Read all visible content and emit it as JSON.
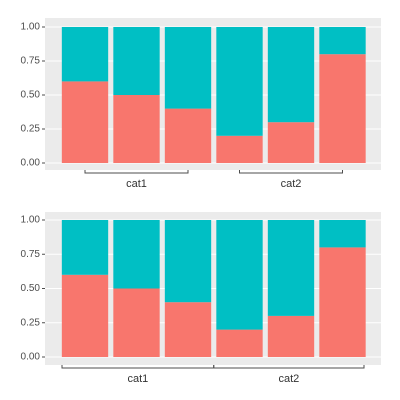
{
  "chart_data": [
    {
      "type": "bar",
      "stacked": true,
      "categories": [
        null,
        null,
        null,
        null,
        null,
        null
      ],
      "group_labels": [
        "cat1",
        "cat2"
      ],
      "bracket": "centers",
      "series": [
        {
          "color": "#F8766D",
          "values": [
            0.6,
            0.5,
            0.4,
            0.2,
            0.3,
            0.8
          ]
        },
        {
          "color": "#00BFC4",
          "values": [
            0.4,
            0.5,
            0.6,
            0.8,
            0.7,
            0.2
          ]
        }
      ],
      "ylim": [
        0,
        1
      ],
      "yticks": [
        {
          "value": 0,
          "label": "0.00"
        },
        {
          "value": 0.25,
          "label": "0.25"
        },
        {
          "value": 0.5,
          "label": "0.50"
        },
        {
          "value": 0.75,
          "label": "0.75"
        },
        {
          "value": 1,
          "label": "1.00"
        }
      ],
      "grid": true
    },
    {
      "type": "bar",
      "stacked": true,
      "categories": [
        null,
        null,
        null,
        null,
        null,
        null
      ],
      "group_labels": [
        "cat1",
        "cat2"
      ],
      "bracket": "bands",
      "series": [
        {
          "color": "#F8766D",
          "values": [
            0.6,
            0.5,
            0.4,
            0.2,
            0.3,
            0.8
          ]
        },
        {
          "color": "#00BFC4",
          "values": [
            0.4,
            0.5,
            0.6,
            0.8,
            0.7,
            0.2
          ]
        }
      ],
      "ylim": [
        0,
        1
      ],
      "yticks": [
        {
          "value": 0,
          "label": "0.00"
        },
        {
          "value": 0.25,
          "label": "0.25"
        },
        {
          "value": 0.5,
          "label": "0.50"
        },
        {
          "value": 0.75,
          "label": "0.75"
        },
        {
          "value": 1,
          "label": "1.00"
        }
      ],
      "grid": true
    }
  ]
}
